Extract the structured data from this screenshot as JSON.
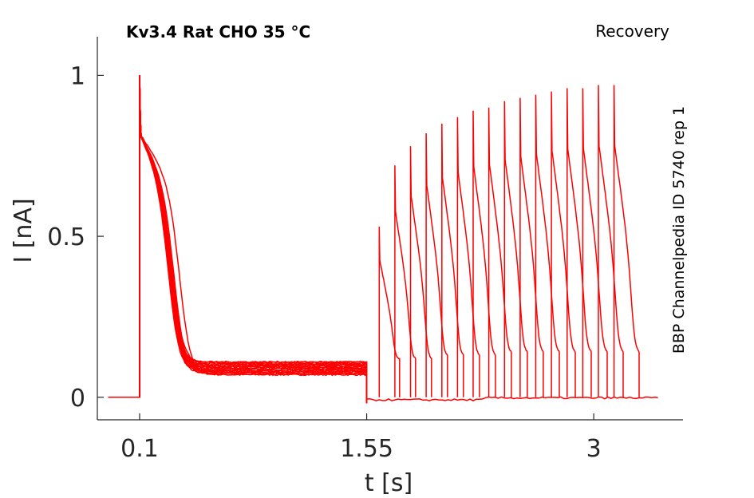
{
  "chart_data": {
    "type": "line",
    "title": "Kv3.4  Rat  CHO  35 °C",
    "protocol": "Recovery",
    "side_note": "BBP Channelpedia ID 5740 rep 1",
    "xlabel": "t [s]",
    "ylabel": "I [nA]",
    "xlim": [
      -0.17,
      3.57
    ],
    "ylim": [
      -0.07,
      1.12
    ],
    "xticks": [
      0.1,
      1.55,
      3
    ],
    "xtick_labels": [
      "0.1",
      "1.55",
      "3"
    ],
    "yticks": [
      0,
      0.5,
      1
    ],
    "ytick_labels": [
      "0",
      "0.5",
      "1"
    ],
    "grid": false,
    "line_color": "#ff0000",
    "conditioning": {
      "start": 0.1,
      "end": 1.55,
      "sweep_count": 16,
      "peak": 1.0,
      "early_value": 0.82,
      "steady_state_range": [
        0.07,
        0.11
      ]
    },
    "recovery": {
      "start": 1.55,
      "test_pulse_times": [
        1.63,
        1.73,
        1.83,
        1.93,
        2.03,
        2.13,
        2.23,
        2.33,
        2.43,
        2.53,
        2.63,
        2.73,
        2.83,
        2.93,
        3.03,
        3.13
      ],
      "test_pulse_peaks": [
        0.53,
        0.72,
        0.78,
        0.82,
        0.85,
        0.87,
        0.89,
        0.9,
        0.92,
        0.93,
        0.94,
        0.95,
        0.96,
        0.96,
        0.97,
        0.97
      ],
      "test_pulse_end_values": [
        0.12,
        0.12,
        0.12,
        0.13,
        0.13,
        0.13,
        0.13,
        0.14,
        0.14,
        0.14,
        0.14,
        0.14,
        0.14,
        0.14,
        0.14,
        0.14
      ]
    }
  }
}
